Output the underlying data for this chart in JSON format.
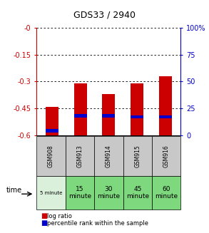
{
  "title": "GDS33 / 2940",
  "samples": [
    "GSM908",
    "GSM913",
    "GSM914",
    "GSM915",
    "GSM916"
  ],
  "time_labels": [
    "5 minute",
    "15\nminute",
    "30\nminute",
    "45\nminute",
    "60\nminute"
  ],
  "time_colors": [
    "#daf0da",
    "#7ed87e",
    "#7ed87e",
    "#7ed87e",
    "#7ed87e"
  ],
  "gsm_color": "#c8c8c8",
  "log_ratio": [
    -0.44,
    -0.31,
    -0.37,
    -0.31,
    -0.27
  ],
  "log_ratio_bottom": [
    -0.6,
    -0.6,
    -0.6,
    -0.6,
    -0.6
  ],
  "percentile_rank": [
    0.04,
    0.18,
    0.18,
    0.17,
    0.17
  ],
  "bar_color": "#cc0000",
  "blue_color": "#0000cc",
  "ylim_left": [
    -0.6,
    0.0
  ],
  "ylim_right": [
    0,
    100
  ],
  "yticks_left": [
    0.0,
    -0.15,
    -0.3,
    -0.45,
    -0.6
  ],
  "yticks_right": [
    0,
    25,
    50,
    75,
    100
  ],
  "left_axis_color": "#cc0000",
  "right_axis_color": "#0000cc",
  "background_color": "#ffffff"
}
